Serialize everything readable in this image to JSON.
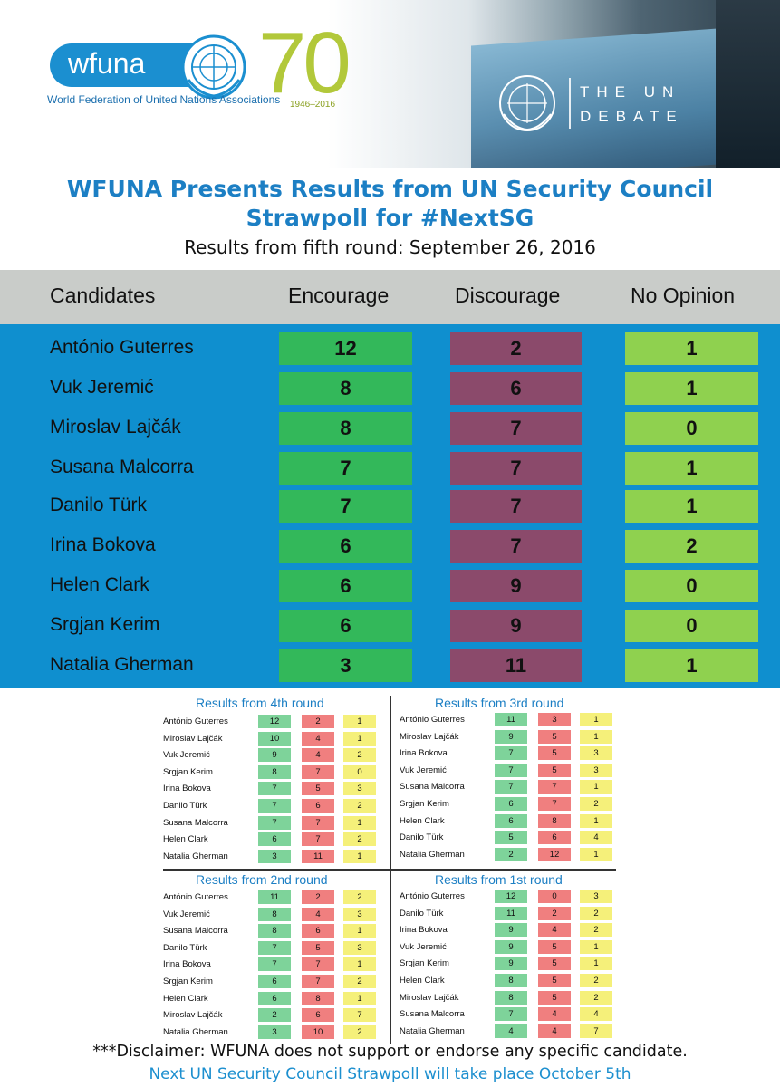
{
  "header": {
    "logo_text": "wfuna",
    "anniversary": "70",
    "years": "1946–2016",
    "org_name": "World Federation of United Nations Associations",
    "debate_line1": "THE UN",
    "debate_line2": "DEBATE"
  },
  "title_line1": "WFUNA Presents Results from UN Security Council",
  "title_line2": "Strawpoll for #NextSG",
  "subtitle": "Results from fifth round: September 26, 2016",
  "columns": {
    "candidates": "Candidates",
    "encourage": "Encourage",
    "discourage": "Discourage",
    "no_opinion": "No Opinion"
  },
  "main_rows": [
    {
      "name": "António Guterres",
      "enc": "12",
      "dis": "2",
      "no": "1"
    },
    {
      "name": "Vuk Jeremić",
      "enc": "8",
      "dis": "6",
      "no": "1"
    },
    {
      "name": "Miroslav Lajčák",
      "enc": "8",
      "dis": "7",
      "no": "0"
    },
    {
      "name": "Susana Malcorra",
      "enc": "7",
      "dis": "7",
      "no": "1"
    },
    {
      "name": "Danilo Türk",
      "enc": "7",
      "dis": "7",
      "no": "1"
    },
    {
      "name": "Irina Bokova",
      "enc": "6",
      "dis": "7",
      "no": "2"
    },
    {
      "name": "Helen Clark",
      "enc": "6",
      "dis": "9",
      "no": "0"
    },
    {
      "name": "Srgjan Kerim",
      "enc": "6",
      "dis": "9",
      "no": "0"
    },
    {
      "name": "Natalia Gherman",
      "enc": "3",
      "dis": "11",
      "no": "1"
    }
  ],
  "round4": {
    "title": "Results from 4th round",
    "rows": [
      {
        "name": "António Guterres",
        "enc": "12",
        "dis": "2",
        "no": "1"
      },
      {
        "name": "Miroslav Lajčák",
        "enc": "10",
        "dis": "4",
        "no": "1"
      },
      {
        "name": "Vuk Jeremić",
        "enc": "9",
        "dis": "4",
        "no": "2"
      },
      {
        "name": "Srgjan Kerim",
        "enc": "8",
        "dis": "7",
        "no": "0"
      },
      {
        "name": "Irina Bokova",
        "enc": "7",
        "dis": "5",
        "no": "3"
      },
      {
        "name": "Danilo Türk",
        "enc": "7",
        "dis": "6",
        "no": "2"
      },
      {
        "name": "Susana Malcorra",
        "enc": "7",
        "dis": "7",
        "no": "1"
      },
      {
        "name": "Helen Clark",
        "enc": "6",
        "dis": "7",
        "no": "2"
      },
      {
        "name": "Natalia Gherman",
        "enc": "3",
        "dis": "11",
        "no": "1"
      }
    ]
  },
  "round3": {
    "title": "Results from 3rd round",
    "rows": [
      {
        "name": "António Guterres",
        "enc": "11",
        "dis": "3",
        "no": "1"
      },
      {
        "name": "Miroslav Lajčák",
        "enc": "9",
        "dis": "5",
        "no": "1"
      },
      {
        "name": "Irina Bokova",
        "enc": "7",
        "dis": "5",
        "no": "3"
      },
      {
        "name": "Vuk Jeremić",
        "enc": "7",
        "dis": "5",
        "no": "3"
      },
      {
        "name": "Susana Malcorra",
        "enc": "7",
        "dis": "7",
        "no": "1"
      },
      {
        "name": "Srgjan Kerim",
        "enc": "6",
        "dis": "7",
        "no": "2"
      },
      {
        "name": "Helen Clark",
        "enc": "6",
        "dis": "8",
        "no": "1"
      },
      {
        "name": "Danilo Türk",
        "enc": "5",
        "dis": "6",
        "no": "4"
      },
      {
        "name": "Natalia Gherman",
        "enc": "2",
        "dis": "12",
        "no": "1"
      }
    ]
  },
  "round2": {
    "title": "Results from 2nd round",
    "rows": [
      {
        "name": "António Guterres",
        "enc": "11",
        "dis": "2",
        "no": "2"
      },
      {
        "name": "Vuk Jeremić",
        "enc": "8",
        "dis": "4",
        "no": "3"
      },
      {
        "name": "Susana Malcorra",
        "enc": "8",
        "dis": "6",
        "no": "1"
      },
      {
        "name": "Danilo Türk",
        "enc": "7",
        "dis": "5",
        "no": "3"
      },
      {
        "name": "Irina Bokova",
        "enc": "7",
        "dis": "7",
        "no": "1"
      },
      {
        "name": "Srgjan Kerim",
        "enc": "6",
        "dis": "7",
        "no": "2"
      },
      {
        "name": "Helen Clark",
        "enc": "6",
        "dis": "8",
        "no": "1"
      },
      {
        "name": "Miroslav Lajčák",
        "enc": "2",
        "dis": "6",
        "no": "7"
      },
      {
        "name": "Natalia Gherman",
        "enc": "3",
        "dis": "10",
        "no": "2"
      }
    ]
  },
  "round1": {
    "title": "Results from 1st round",
    "rows": [
      {
        "name": "António Guterres",
        "enc": "12",
        "dis": "0",
        "no": "3"
      },
      {
        "name": "Danilo Türk",
        "enc": "11",
        "dis": "2",
        "no": "2"
      },
      {
        "name": "Irina Bokova",
        "enc": "9",
        "dis": "4",
        "no": "2"
      },
      {
        "name": "Vuk Jeremić",
        "enc": "9",
        "dis": "5",
        "no": "1"
      },
      {
        "name": "Srgjan Kerim",
        "enc": "9",
        "dis": "5",
        "no": "1"
      },
      {
        "name": "Helen Clark",
        "enc": "8",
        "dis": "5",
        "no": "2"
      },
      {
        "name": "Miroslav Lajčák",
        "enc": "8",
        "dis": "5",
        "no": "2"
      },
      {
        "name": "Susana Malcorra",
        "enc": "7",
        "dis": "4",
        "no": "4"
      },
      {
        "name": "Natalia Gherman",
        "enc": "4",
        "dis": "4",
        "no": "7"
      }
    ]
  },
  "disclaimer": "***Disclaimer: WFUNA does not support or endorse any specific candidate.",
  "next_poll": "Next UN Security Council Strawpoll will take place October 5th"
}
